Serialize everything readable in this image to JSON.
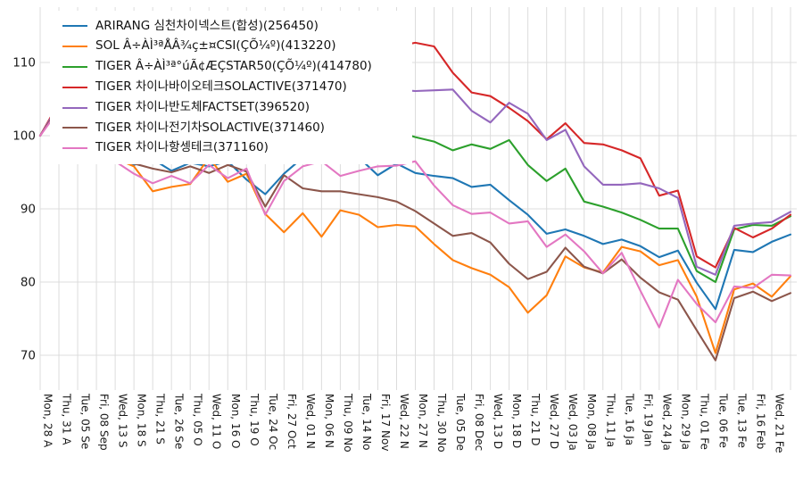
{
  "chart_data": {
    "type": "line",
    "title": "",
    "xlabel": "",
    "ylabel": "",
    "grid": true,
    "legend_position": "upper left",
    "y_ticks": [
      70,
      80,
      90,
      100,
      110
    ],
    "ylim": [
      66,
      115
    ],
    "x_tick_labels": [
      "Mon, 28 A",
      "Thu, 31 A",
      "Tue, 05 Se",
      "Fri, 08 Sep",
      "Wed, 13 S",
      "Mon, 18 S",
      "Thu, 21 S",
      "Tue, 26 Se",
      "Thu, 05 O",
      "Wed, 11 O",
      "Mon, 16 O",
      "Thu, 19 O",
      "Tue, 24 Oc",
      "Fri, 27 Oct",
      "Wed, 01 N",
      "Mon, 06 N",
      "Thu, 09 No",
      "Tue, 14 No",
      "Fri, 17 Nov",
      "Wed, 22 N",
      "Mon, 27 N",
      "Thu, 30 No",
      "Tue, 05 De",
      "Fri, 08 Dec",
      "Wed, 13 D",
      "Mon, 18 D",
      "Thu, 21 D",
      "Wed, 27 D",
      "Wed, 03 Ja",
      "Mon, 08 Ja",
      "Thu, 11 Ja",
      "Tue, 16 Ja",
      "Fri, 19 Jan",
      "Wed, 24 Ja",
      "Mon, 29 Ja",
      "Thu, 01 Fe",
      "Tue, 06 Fe",
      "Tue, 13 Fe",
      "Fri, 16 Feb",
      "Wed, 21 Fe"
    ],
    "series": [
      {
        "name": "ARIRANG 심천차이넥스트(합성)(256450)",
        "color": "#1f77b4",
        "values": [
          100,
          104.3,
          103.0,
          98.5,
          97.2,
          96.0,
          96.8,
          95.2,
          96.3,
          95.8,
          96.5,
          94.0,
          92.0,
          94.8,
          97.0,
          96.9,
          96.9,
          97.0,
          94.6,
          96.2,
          94.9,
          94.5,
          94.2,
          93.0,
          93.3,
          91.2,
          89.2,
          86.6,
          87.2,
          86.3,
          85.2,
          85.8,
          84.9,
          83.4,
          84.3,
          79.9,
          76.3,
          84.4,
          84.1,
          85.5,
          86.5
        ]
      },
      {
        "name": "SOL Â÷ÀÌ³ªÅÂ¾ç±¤CSI(ÇÕ¼º)(413220)",
        "color": "#ff7f0e",
        "values": [
          100,
          104.0,
          102.0,
          97.6,
          96.9,
          95.8,
          92.4,
          93.0,
          93.4,
          97.0,
          93.7,
          94.8,
          89.3,
          86.8,
          89.4,
          86.2,
          89.8,
          89.2,
          87.5,
          87.8,
          87.6,
          85.2,
          83.0,
          81.9,
          81.0,
          79.3,
          75.8,
          78.2,
          83.5,
          82.0,
          81.3,
          84.8,
          84.2,
          82.3,
          83.0,
          78.0,
          70.3,
          79.0,
          79.8,
          78.0,
          80.8
        ]
      },
      {
        "name": "TIGER Â÷ÀÌ³ª°úÃ¢ÆÇSTAR50(ÇÕ¼º)(414780)",
        "color": "#2ca02c",
        "values": [
          100,
          104.0,
          103.0,
          100.5,
          98.5,
          98.0,
          98.5,
          97.6,
          98.2,
          98.5,
          97.8,
          98.2,
          96.9,
          98.5,
          99.0,
          99.5,
          100.0,
          100.5,
          100.3,
          100.6,
          99.8,
          99.2,
          98.0,
          98.8,
          98.2,
          99.4,
          96.0,
          93.8,
          95.5,
          91.0,
          90.3,
          89.5,
          88.5,
          87.3,
          87.3,
          81.5,
          80.0,
          87.2,
          87.8,
          87.7,
          89.0
        ]
      },
      {
        "name": "TIGER 차이나바이오테크SOLACTIVE(371470)",
        "color": "#d62728",
        "values": [
          100,
          104.5,
          105.5,
          106.5,
          107.5,
          108.0,
          108.5,
          109.0,
          110.0,
          110.5,
          111.0,
          111.5,
          110.5,
          111.0,
          112.0,
          111.5,
          112.0,
          112.5,
          112.0,
          112.2,
          112.7,
          112.2,
          108.6,
          105.9,
          105.4,
          103.8,
          102.0,
          99.5,
          101.7,
          99.0,
          98.8,
          98.0,
          96.9,
          91.8,
          92.5,
          83.5,
          82.0,
          87.4,
          86.1,
          87.3,
          89.2
        ]
      },
      {
        "name": "TIGER 차이나반도체FACTSET(396520)",
        "color": "#9467bd",
        "values": [
          100,
          104.2,
          104.8,
          105.0,
          105.2,
          105.0,
          105.5,
          105.2,
          105.8,
          106.0,
          106.2,
          106.0,
          105.5,
          106.0,
          106.3,
          106.0,
          106.5,
          106.2,
          106.4,
          106.3,
          106.1,
          106.2,
          106.3,
          103.4,
          101.8,
          104.5,
          103.0,
          99.4,
          100.8,
          95.8,
          93.3,
          93.3,
          93.5,
          92.8,
          91.5,
          82.1,
          81.0,
          87.7,
          88.0,
          88.2,
          89.6
        ]
      },
      {
        "name": "TIGER 차이나전기차SOLACTIVE(371460)",
        "color": "#8c564b",
        "values": [
          100,
          103.8,
          102.0,
          97.6,
          96.8,
          96.2,
          95.5,
          95.0,
          95.8,
          94.9,
          96.0,
          95.1,
          90.3,
          94.6,
          92.8,
          92.4,
          92.4,
          92.0,
          91.6,
          91.0,
          89.7,
          88.0,
          86.3,
          86.7,
          85.4,
          82.5,
          80.4,
          81.4,
          84.7,
          82.1,
          81.2,
          83.1,
          80.6,
          78.6,
          77.6,
          73.4,
          69.3,
          77.8,
          78.7,
          77.4,
          78.5
        ]
      },
      {
        "name": "TIGER 차이나항셍테크(371160)",
        "color": "#e377c2",
        "values": [
          100,
          103.5,
          101.5,
          97.4,
          96.5,
          94.8,
          93.5,
          94.5,
          93.5,
          96.0,
          94.2,
          95.5,
          89.2,
          93.8,
          95.8,
          96.5,
          94.5,
          95.2,
          95.8,
          95.9,
          96.5,
          93.2,
          90.5,
          89.3,
          89.5,
          88.0,
          88.3,
          84.8,
          86.5,
          84.2,
          81.2,
          84.0,
          78.8,
          73.8,
          80.3,
          77.0,
          74.5,
          79.4,
          79.2,
          81.0,
          80.9
        ]
      }
    ]
  },
  "style": {
    "grid_color": "#dcdcdc",
    "tick_label_color": "#1a1a1a",
    "background": "#ffffff"
  }
}
